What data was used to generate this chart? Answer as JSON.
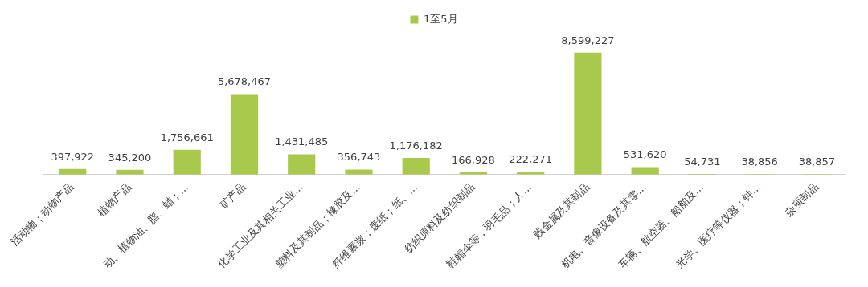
{
  "chart_data": {
    "type": "bar",
    "categories": [
      "活动物；动物产品",
      "植物产品",
      "动、植物油、脂、蜡；…",
      "矿产品",
      "化学工业及其相关工业…",
      "塑料及其制品；橡胶及…",
      "纤维素浆；废纸；纸、…",
      "纺织原料及纺织制品",
      "鞋帽伞等；羽毛品；人…",
      "贱金属及其制品",
      "机电、音像设备及其零…",
      "车辆、航空器、船舶及…",
      "光学、医疗等仪器；钟…",
      "杂项制品"
    ],
    "series": [
      {
        "name": "1至5月",
        "color": "#a9c94d",
        "values": [
          397922,
          345200,
          1756661,
          5678467,
          1431485,
          356743,
          1176182,
          166928,
          222271,
          8599227,
          531620,
          54731,
          38856,
          38857
        ],
        "value_labels": [
          "397,922",
          "345,200",
          "1,756,661",
          "5,678,467",
          "1,431,485",
          "356,743",
          "1,176,182",
          "166,928",
          "222,271",
          "8,599,227",
          "531,620",
          "54,731",
          "38,856",
          "38,857"
        ]
      }
    ],
    "legend": "top",
    "grid": false
  }
}
